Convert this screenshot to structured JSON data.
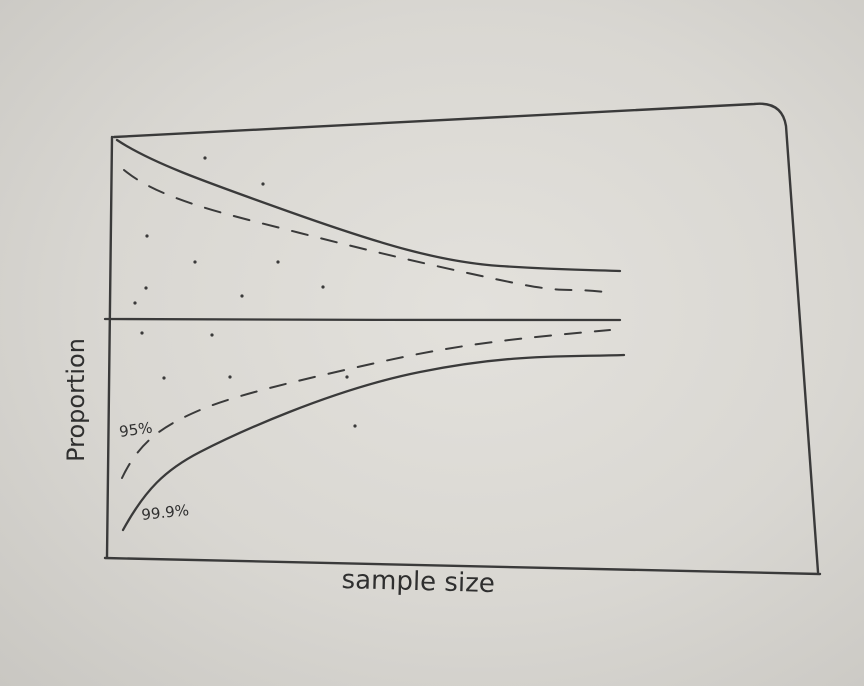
{
  "chart_data": {
    "type": "line",
    "title": "",
    "xlabel": "sample size",
    "ylabel": "Proportion",
    "x_ticks": [],
    "y_ticks": [],
    "grid": false,
    "legend": "none",
    "reference_line": {
      "name": "",
      "y": 0.5
    },
    "series": [
      {
        "name": "99.9%",
        "style": "solid",
        "role": "outer funnel limit",
        "shape": "funnel narrowing toward the center line as sample size grows"
      },
      {
        "name": "95%",
        "style": "dashed",
        "role": "inner funnel limit",
        "shape": "funnel narrowing toward the center line as sample size grows"
      }
    ],
    "series_labels": {
      "inner": "95%",
      "outer": "99.9%"
    },
    "scatter_points": "scattered dots inside the funnel",
    "colors": {
      "ink": "#3a3a3a",
      "paper": "#dedcd7"
    }
  }
}
